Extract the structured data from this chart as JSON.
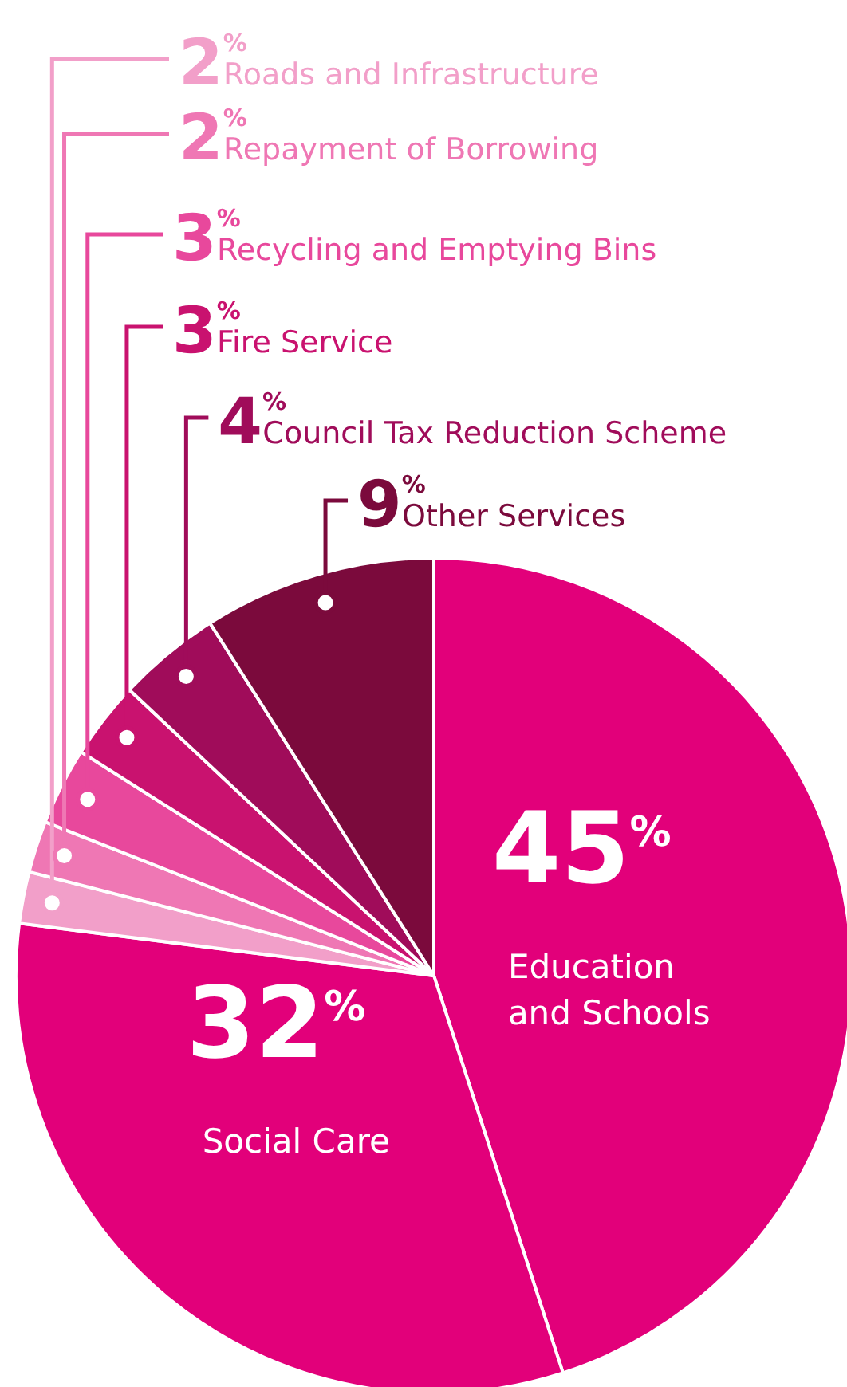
{
  "chart_data": {
    "type": "pie",
    "categories": [
      "Education and Schools",
      "Social Care",
      "Roads and Infrastructure",
      "Repayment of Borrowing",
      "Recycling and Emptying Bins",
      "Fire Service",
      "Council Tax Reduction Scheme",
      "Other Services"
    ],
    "values": [
      45,
      32,
      2,
      2,
      3,
      3,
      4,
      9
    ],
    "value_labels": [
      "45$^{%}$",
      "32$^{%}$",
      "2$^{%}$",
      "2$^{%}$",
      "3$^{%}$",
      "3$^{%}$",
      "4$^{%}$",
      "9$^{%}$"
    ],
    "colors": [
      "#e2007a",
      "#e2007a",
      "#f29fc9",
      "#ef77b4",
      "#e8489c",
      "#c9126f",
      "#a00c5a",
      "#7b0a3c"
    ]
  }
}
